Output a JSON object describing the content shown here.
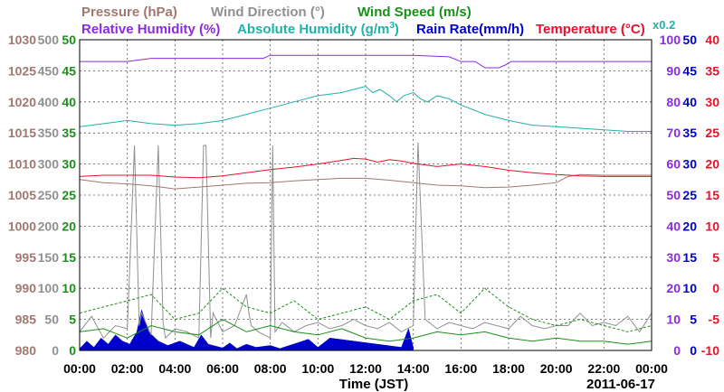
{
  "chart_data": {
    "type": "line",
    "legend": {
      "row1": [
        {
          "text": "Pressure (hPa)",
          "color": "#a07870"
        },
        {
          "text": "Wind Direction (°)",
          "color": "#909090"
        },
        {
          "text": "Wind Speed (m/s)",
          "color": "#1a8f1a"
        }
      ],
      "row2": [
        {
          "text": "Relative Humidity (%)",
          "color": "#8a2be2"
        },
        {
          "text": "Absolute Humidity (g/m",
          "sup": "3",
          "tail": ")",
          "color": "#20b2aa"
        },
        {
          "text": "Rain Rate(mm/h)",
          "color": "#0000cc"
        },
        {
          "text": "Temperature (°C)",
          "color": "#e8102a"
        }
      ],
      "scale_note": {
        "text": "x0.2",
        "color": "#20b2aa"
      }
    },
    "xlabel": "Time (JST)",
    "date": "2011-06-17",
    "x_ticks": [
      "00:00",
      "02:00",
      "04:00",
      "06:00",
      "08:00",
      "10:00",
      "12:00",
      "14:00",
      "16:00",
      "18:00",
      "20:00",
      "22:00",
      "00:00"
    ],
    "axes": {
      "pressure": {
        "color": "#a07870",
        "ticks": [
          "980",
          "985",
          "990",
          "995",
          "1000",
          "1005",
          "1010",
          "1015",
          "1020",
          "1025",
          "1030"
        ],
        "ylim": [
          980,
          1030
        ]
      },
      "wind_direction": {
        "color": "#909090",
        "ticks": [
          "0",
          "50",
          "100",
          "150",
          "200",
          "250",
          "300",
          "350",
          "400",
          "450",
          "500"
        ],
        "ylim": [
          0,
          500
        ]
      },
      "wind_speed": {
        "color": "#1a8f1a",
        "ticks": [
          "0",
          "5",
          "10",
          "15",
          "20",
          "25",
          "30",
          "35",
          "40",
          "45",
          "50"
        ],
        "ylim": [
          0,
          50
        ]
      },
      "humidity": {
        "color": "#8a2be2",
        "ticks": [
          "0",
          "10",
          "20",
          "30",
          "40",
          "50",
          "60",
          "70",
          "80",
          "90",
          "100"
        ],
        "ylim": [
          0,
          100
        ]
      },
      "rain_rate": {
        "color": "#0000cc",
        "ticks": [
          "0",
          "5",
          "10",
          "15",
          "20",
          "25",
          "30",
          "35",
          "40",
          "45",
          "50"
        ],
        "ylim": [
          0,
          50
        ]
      },
      "temperature": {
        "color": "#e8102a",
        "ticks": [
          "-10",
          "-5",
          "0",
          "5",
          "10",
          "15",
          "20",
          "25",
          "30",
          "35",
          "40"
        ],
        "ylim": [
          -10,
          40
        ]
      }
    },
    "series": {
      "relative_humidity": {
        "color": "#8a2be2",
        "x": [
          0,
          2,
          3,
          7.7,
          8,
          14,
          15.5,
          16,
          16.6,
          17,
          17.6,
          17.9,
          18.1,
          24
        ],
        "y": [
          93,
          93,
          94,
          94,
          95,
          95,
          94.5,
          93,
          93,
          91,
          91,
          92,
          93,
          93
        ]
      },
      "absolute_humidity": {
        "color": "#20b2aa",
        "x": [
          0,
          1,
          2,
          3,
          4,
          5,
          6,
          7,
          8,
          9,
          10,
          11,
          11.5,
          12,
          12.3,
          12.6,
          13,
          13.3,
          13.6,
          14,
          14.3,
          14.6,
          15,
          15.5,
          16,
          17,
          18,
          19,
          20,
          21,
          22,
          23,
          24
        ],
        "y": [
          72,
          73,
          74,
          73,
          72.5,
          73,
          74,
          76,
          78,
          80,
          82,
          83,
          84,
          85,
          83,
          84,
          82,
          80,
          82,
          83,
          81,
          80,
          82,
          81,
          79,
          76,
          74,
          72.5,
          72,
          71.5,
          71,
          70.5,
          70.5
        ]
      },
      "temperature": {
        "color": "#e8102a",
        "x": [
          0,
          1,
          2,
          3,
          4,
          5,
          6,
          7,
          8,
          9,
          10,
          11,
          11.5,
          12,
          12.5,
          13,
          13.5,
          14,
          15,
          16,
          17,
          18,
          19,
          20,
          21,
          22,
          23,
          24
        ],
        "y": [
          18,
          18.2,
          18.2,
          18.2,
          17.9,
          17.8,
          18.1,
          18.6,
          19.1,
          19.5,
          20,
          20.6,
          20.9,
          20.8,
          20.3,
          20.7,
          20.5,
          20.1,
          19.6,
          20,
          19.6,
          19,
          18.6,
          18.3,
          18.1,
          18,
          18,
          18
        ]
      },
      "pressure": {
        "color": "#a07870",
        "x": [
          0,
          1,
          2,
          3,
          4,
          5,
          6,
          7,
          8,
          9,
          10,
          11,
          12,
          13,
          14,
          15,
          16,
          17,
          18,
          19,
          20,
          20.5,
          21,
          22,
          23,
          24
        ],
        "y": [
          1007.5,
          1007,
          1006.8,
          1006.5,
          1006,
          1006.3,
          1006.6,
          1006.9,
          1007,
          1007.3,
          1007.5,
          1007.7,
          1007.7,
          1007.4,
          1007,
          1006.6,
          1006.5,
          1006.2,
          1006.3,
          1006.6,
          1007,
          1008,
          1008.3,
          1008.2,
          1008.2,
          1008.2
        ]
      },
      "wind_direction": {
        "color": "#909090",
        "x": [
          0,
          0.5,
          1,
          1.5,
          2,
          2.3,
          2.5,
          2.6,
          3,
          3.3,
          3.5,
          3.6,
          4,
          4.5,
          5,
          5.2,
          5.3,
          5.5,
          5.6,
          6,
          6.5,
          7,
          7.1,
          7.2,
          7.5,
          8,
          8.1,
          8.2,
          8.5,
          9,
          9.5,
          10,
          10.5,
          11,
          11.5,
          12,
          12.5,
          13,
          13.5,
          14,
          14.2,
          14.5,
          15,
          15.5,
          16,
          16.5,
          17,
          17.5,
          18,
          18.5,
          19,
          19.5,
          20,
          20.5,
          21,
          21.5,
          22,
          22.5,
          23,
          23.5,
          24
        ],
        "y": [
          30,
          55,
          20,
          40,
          35,
          330,
          40,
          60,
          25,
          330,
          45,
          20,
          35,
          30,
          20,
          330,
          330,
          20,
          60,
          30,
          40,
          90,
          60,
          40,
          30,
          20,
          330,
          30,
          45,
          30,
          40,
          45,
          35,
          40,
          50,
          40,
          35,
          45,
          30,
          40,
          335,
          50,
          35,
          45,
          40,
          35,
          45,
          40,
          35,
          55,
          40,
          35,
          40,
          40,
          60,
          40,
          45,
          40,
          55,
          30,
          60
        ]
      },
      "wind_speed": {
        "color": "#1a8f1a",
        "x": [
          0,
          1,
          2,
          3,
          4,
          5,
          6,
          7,
          8,
          9,
          10,
          11,
          12,
          13,
          14,
          15,
          16,
          17,
          18,
          19,
          20,
          21,
          22,
          23,
          24
        ],
        "y": [
          3,
          3.5,
          2,
          4,
          3,
          2.5,
          5,
          3,
          4,
          3,
          2.5,
          3.5,
          2,
          1.5,
          2,
          3,
          2.5,
          3,
          2,
          1.5,
          2,
          1.5,
          1.5,
          1,
          1.5
        ]
      },
      "wind_speed_gust": {
        "color": "#1a8f1a",
        "x": [
          0,
          1,
          2,
          3,
          4,
          5,
          6,
          7,
          8,
          9,
          10,
          11,
          12,
          13,
          14,
          15,
          16,
          17,
          18,
          19,
          20,
          21,
          22,
          23,
          24
        ],
        "y": [
          6,
          7,
          8,
          9,
          5,
          6,
          10,
          7,
          6,
          8,
          5,
          6,
          7,
          5,
          8,
          9,
          6,
          10,
          7,
          5,
          4,
          5,
          4,
          3,
          4
        ]
      },
      "rain_rate": {
        "color": "#0000cc",
        "x": [
          0,
          0.3,
          0.6,
          0.9,
          1.2,
          1.5,
          1.8,
          2.1,
          2.4,
          2.6,
          2.9,
          3.3,
          3.7,
          4.2,
          4.8,
          5.1,
          5.4,
          6,
          6.3,
          6.6,
          7,
          7.4,
          8,
          8.4,
          9.6,
          10,
          10.5,
          13.5,
          13.8,
          14
        ],
        "y": [
          0.3,
          1.5,
          0.5,
          2,
          1,
          2.5,
          1.5,
          1,
          3,
          6.5,
          3,
          1.5,
          0.8,
          1.5,
          0.5,
          2.5,
          1,
          0.4,
          1.2,
          0.3,
          1,
          0.5,
          0.8,
          0.3,
          1.8,
          0.5,
          2,
          0.5,
          3.5,
          0.5
        ]
      }
    }
  }
}
